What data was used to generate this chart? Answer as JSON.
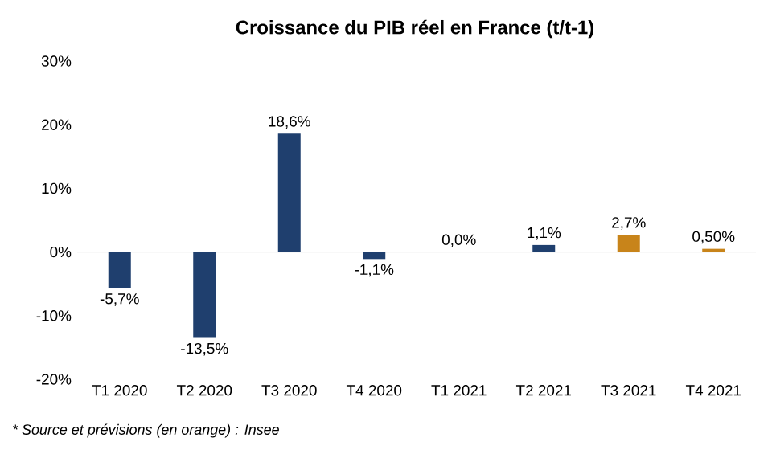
{
  "chart_data": {
    "type": "bar",
    "title": "Croissance du PIB réel en France (t/t-1)",
    "categories": [
      "T1 2020",
      "T2 2020",
      "T3 2020",
      "T4 2020",
      "T1 2021",
      "T2 2021",
      "T3 2021",
      "T4 2021"
    ],
    "values": [
      -5.7,
      -13.5,
      18.6,
      -1.1,
      0.0,
      1.1,
      2.7,
      0.5
    ],
    "colors": [
      "#1f3f6e",
      "#1f3f6e",
      "#1f3f6e",
      "#1f3f6e",
      "#1f3f6e",
      "#1f3f6e",
      "#c8841a",
      "#c8841a"
    ],
    "value_labels": [
      "-5,7%",
      "-13,5%",
      "18,6%",
      "-1,1%",
      "0,0%",
      "1,1%",
      "2,7%",
      "0,50%"
    ],
    "ylim": [
      -20,
      30
    ],
    "yticks": [
      {
        "value": -20,
        "label": "-20%"
      },
      {
        "value": -10,
        "label": "-10%"
      },
      {
        "value": 0,
        "label": "0%"
      },
      {
        "value": 10,
        "label": "10%"
      },
      {
        "value": 20,
        "label": "20%"
      },
      {
        "value": 30,
        "label": "30%"
      }
    ],
    "annotations": [
      "* Source et prévisions (en orange) : Insee"
    ]
  }
}
